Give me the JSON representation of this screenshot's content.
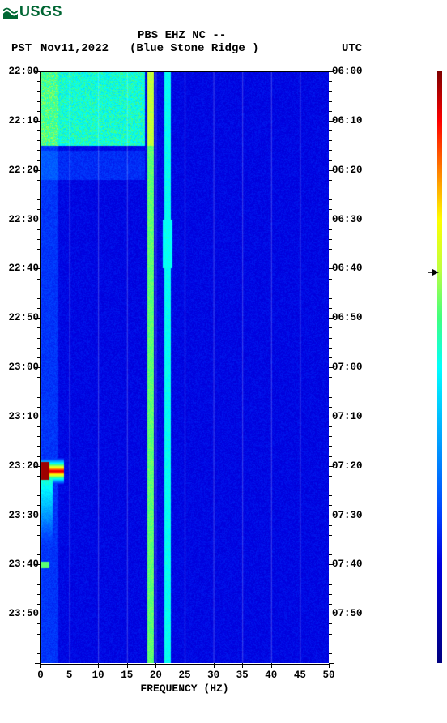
{
  "logo": {
    "text": "USGS",
    "color": "#006633"
  },
  "header": {
    "title": "PBS EHZ NC --",
    "pst_label": "PST",
    "date": "Nov11,2022",
    "station": "(Blue Stone Ridge )",
    "utc_label": "UTC",
    "title_fontsize": 14,
    "label_fontsize": 14
  },
  "spectrogram": {
    "type": "heatmap",
    "xlabel": "FREQUENCY (HZ)",
    "xlim": [
      0,
      50
    ],
    "xtick_step": 5,
    "xticks": [
      0,
      5,
      10,
      15,
      20,
      25,
      30,
      35,
      40,
      45,
      50
    ],
    "pst_ticks": [
      "22:00",
      "22:10",
      "22:20",
      "22:30",
      "22:40",
      "22:50",
      "23:00",
      "23:10",
      "23:20",
      "23:30",
      "23:40",
      "23:50"
    ],
    "utc_ticks": [
      "06:00",
      "06:10",
      "06:20",
      "06:30",
      "06:40",
      "06:50",
      "07:00",
      "07:10",
      "07:20",
      "07:30",
      "07:40",
      "07:50"
    ],
    "background_color": "#0000cc",
    "grid_color": "#ffffff",
    "grid_alpha": 0.25,
    "colormap": [
      "#000080",
      "#0000b0",
      "#0000e0",
      "#0040ff",
      "#0080ff",
      "#00c0ff",
      "#00ffff",
      "#40ff80",
      "#c0ff40",
      "#ffff00",
      "#ff8000",
      "#ff0000",
      "#800000"
    ],
    "persistent_lines": [
      {
        "freq": 19,
        "color": "#ffff40",
        "width": 2
      },
      {
        "freq": 22,
        "color": "#80ffff",
        "width": 2
      }
    ],
    "bright_region": {
      "pst_start": "22:00",
      "pst_end": "22:15",
      "freq_start": 0,
      "freq_end": 18,
      "color_range": [
        "#00e0ff",
        "#80ffff"
      ]
    },
    "event": {
      "pst": "23:21",
      "freq_start": 0,
      "freq_end": 4,
      "colors": [
        "#800000",
        "#ff0000",
        "#ffff00"
      ]
    },
    "minor_blip": {
      "pst": "22:35",
      "freq": 22,
      "color": "#00ffff"
    },
    "label_fontsize": 12.5,
    "axis_title_fontsize": 13
  },
  "colorbar": {
    "orientation": "vertical",
    "marker_position": 0.66
  }
}
